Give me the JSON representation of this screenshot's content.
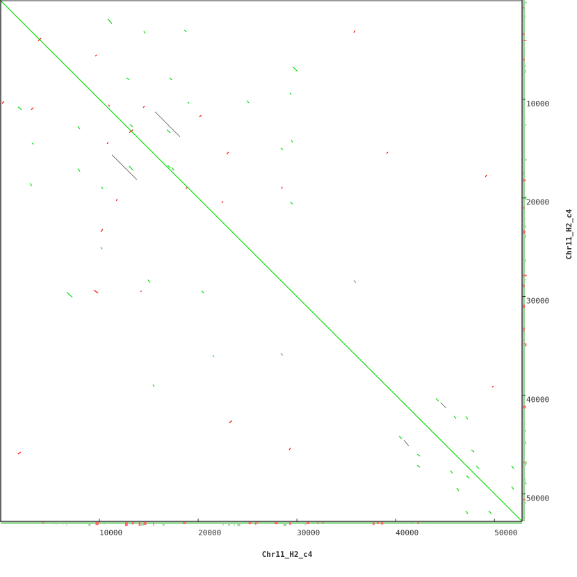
{
  "chart_data": {
    "type": "scatter",
    "subtype": "dot-plot",
    "title": "",
    "xlabel": "Chr11_H2_c4",
    "ylabel": "Chr11_H2_c4",
    "xlim": [
      0,
      52800
    ],
    "ylim": [
      0,
      52800
    ],
    "y_inverted": true,
    "grid": false,
    "x_ticks": [
      10000,
      20000,
      30000,
      40000,
      50000
    ],
    "y_ticks": [
      10000,
      20000,
      30000,
      40000,
      50000
    ],
    "x_tick_labels": [
      "10000",
      "20000",
      "30000",
      "40000",
      "50000"
    ],
    "y_tick_labels": [
      "10000",
      "20000",
      "30000",
      "40000",
      "50000"
    ],
    "colors": {
      "forward": "#00dd00",
      "reverse": "#ff0000",
      "other": "#555555",
      "coverage": "#99d999",
      "axis": "#333333"
    },
    "main_diagonal": [
      0,
      0,
      52800,
      52800
    ],
    "segments_forward": [
      [
        10840,
        1830,
        11260,
        2320
      ],
      [
        14500,
        3100,
        14640,
        3310
      ],
      [
        18590,
        2960,
        18800,
        3170
      ],
      [
        12740,
        7810,
        13020,
        8030
      ],
      [
        17110,
        7810,
        17320,
        8030
      ],
      [
        29570,
        6690,
        30060,
        7180
      ],
      [
        29290,
        9360,
        29430,
        9500
      ],
      [
        24920,
        10140,
        25130,
        10350
      ],
      [
        18940,
        10280,
        19080,
        10420
      ],
      [
        1760,
        10770,
        2110,
        11050
      ],
      [
        7810,
        12740,
        8030,
        13020
      ],
      [
        13090,
        12530,
        13380,
        12810
      ],
      [
        16830,
        13090,
        17180,
        13380
      ],
      [
        3170,
        14430,
        3310,
        14570
      ],
      [
        28370,
        14920,
        28580,
        15140
      ],
      [
        29430,
        14150,
        29570,
        14360
      ],
      [
        16900,
        16680,
        17180,
        16970
      ],
      [
        17320,
        16900,
        17530,
        17180
      ],
      [
        13020,
        16760,
        13380,
        17180
      ],
      [
        7810,
        17040,
        8030,
        17320
      ],
      [
        2960,
        18520,
        3170,
        18800
      ],
      [
        10210,
        18870,
        10350,
        19080
      ],
      [
        29360,
        20420,
        29570,
        20630
      ],
      [
        10140,
        24990,
        10280,
        25200
      ],
      [
        6690,
        29570,
        7250,
        30060
      ],
      [
        14920,
        28300,
        15140,
        28580
      ],
      [
        20350,
        29430,
        20560,
        29640
      ],
      [
        21470,
        35970,
        21610,
        36120
      ],
      [
        15420,
        38930,
        15560,
        39140
      ],
      [
        44070,
        40340,
        44350,
        40620
      ],
      [
        45900,
        42100,
        46110,
        42380
      ],
      [
        47100,
        42170,
        47310,
        42450
      ],
      [
        40340,
        44140,
        40620,
        44420
      ],
      [
        42170,
        45970,
        42450,
        46180
      ],
      [
        42170,
        47100,
        42450,
        47310
      ],
      [
        45550,
        47660,
        45760,
        47940
      ],
      [
        47660,
        45550,
        47940,
        45760
      ],
      [
        47170,
        48150,
        47450,
        48440
      ],
      [
        48150,
        47170,
        48440,
        47450
      ],
      [
        46180,
        49420,
        46390,
        49700
      ],
      [
        47100,
        51740,
        47310,
        52030
      ],
      [
        49420,
        51740,
        49700,
        52030
      ],
      [
        51740,
        49280,
        51960,
        49560
      ],
      [
        51740,
        47170,
        51960,
        47450
      ]
    ],
    "segments_reverse": [
      [
        3800,
        4080,
        4080,
        3800
      ],
      [
        9570,
        5630,
        9720,
        5490
      ],
      [
        35760,
        3240,
        35900,
        3030
      ],
      [
        140,
        10420,
        350,
        10210
      ],
      [
        3100,
        11050,
        3310,
        10840
      ],
      [
        10910,
        10560,
        11050,
        10700
      ],
      [
        14430,
        10840,
        14570,
        10700
      ],
      [
        13020,
        13380,
        13380,
        13090
      ],
      [
        20130,
        11760,
        20350,
        11620
      ],
      [
        22880,
        15560,
        23090,
        15350
      ],
      [
        10770,
        14500,
        10910,
        14360
      ],
      [
        18730,
        19080,
        18940,
        18870
      ],
      [
        11690,
        20280,
        11830,
        20130
      ],
      [
        22390,
        20490,
        22530,
        20350
      ],
      [
        28440,
        19080,
        28510,
        18870
      ],
      [
        10140,
        23440,
        10350,
        23160
      ],
      [
        9430,
        29360,
        9860,
        29640
      ],
      [
        39070,
        15490,
        39210,
        15350
      ],
      [
        23160,
        42800,
        23440,
        42590
      ],
      [
        29220,
        45550,
        29360,
        45340
      ],
      [
        1760,
        45970,
        2040,
        45760
      ],
      [
        49070,
        17880,
        49210,
        17670
      ],
      [
        49770,
        39210,
        49910,
        39070
      ],
      [
        14150,
        29500,
        14290,
        29430
      ]
    ],
    "segments_other": [
      [
        15630,
        11260,
        18160,
        13800
      ],
      [
        11260,
        15630,
        13800,
        18160
      ],
      [
        44560,
        40760,
        45130,
        41320
      ],
      [
        40830,
        44560,
        41320,
        45130
      ],
      [
        28370,
        35760,
        28580,
        35970
      ],
      [
        35760,
        28370,
        35970,
        28580
      ]
    ]
  }
}
